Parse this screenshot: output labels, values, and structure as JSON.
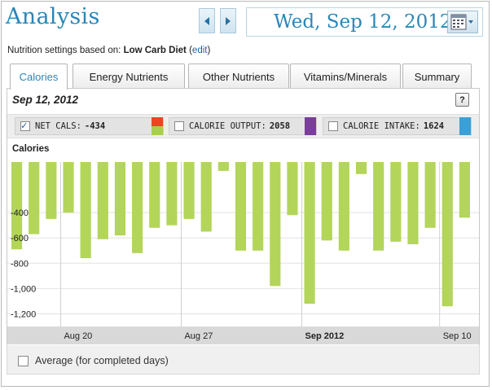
{
  "header": {
    "title": "Analysis",
    "date": "Wed, Sep 12, 2012"
  },
  "settings": {
    "prefix": "Nutrition settings based on:",
    "diet": "Low Carb Diet",
    "edit_open": "(",
    "edit_label": "edit",
    "edit_close": ")"
  },
  "tabs": [
    {
      "label": "Calories",
      "active": true
    },
    {
      "label": "Energy Nutrients",
      "active": false
    },
    {
      "label": "Other Nutrients",
      "active": false
    },
    {
      "label": "Vitamins/Minerals",
      "active": false
    },
    {
      "label": "Summary",
      "active": false
    }
  ],
  "panel": {
    "date": "Sep 12, 2012",
    "help": "?",
    "chart_label": "Calories"
  },
  "legend": [
    {
      "label": "NET CALS:",
      "value": "-434",
      "checked": true,
      "colors": [
        "#ee4422",
        "#a8d04a"
      ]
    },
    {
      "label": "CALORIE OUTPUT:",
      "value": "2058",
      "checked": false,
      "colors": [
        "#7a3d9a"
      ]
    },
    {
      "label": "CALORIE INTAKE:",
      "value": "1624",
      "checked": false,
      "colors": [
        "#3b9fd8"
      ]
    }
  ],
  "average": {
    "label": "Average (for completed days)",
    "checked": false
  },
  "chart_data": {
    "type": "bar",
    "series": [
      {
        "values": [
          -690,
          -570,
          -450,
          -400,
          -760,
          -610,
          -580,
          -720,
          -520,
          -500,
          -450,
          -550,
          -70,
          -700,
          -700,
          -980,
          -420,
          -1120,
          -620,
          -700,
          -95,
          -700,
          -630,
          -650,
          -520,
          -1140,
          -440
        ],
        "color": "#b3d55a"
      }
    ],
    "ylim": [
      -1300,
      0
    ],
    "yticks": [
      -400,
      -600,
      -800,
      -1000,
      -1200
    ],
    "ytick_labels": [
      "-400",
      "-600",
      "-800",
      "-1,000",
      "-1,200"
    ],
    "xticks": [
      {
        "label": "Aug 20",
        "bold": false,
        "index": 3
      },
      {
        "label": "Aug 27",
        "bold": false,
        "index": 10
      },
      {
        "label": "Sep 2012",
        "bold": true,
        "index": 17
      },
      {
        "label": "Sep 10",
        "bold": false,
        "index": 25
      }
    ],
    "grid": true
  }
}
